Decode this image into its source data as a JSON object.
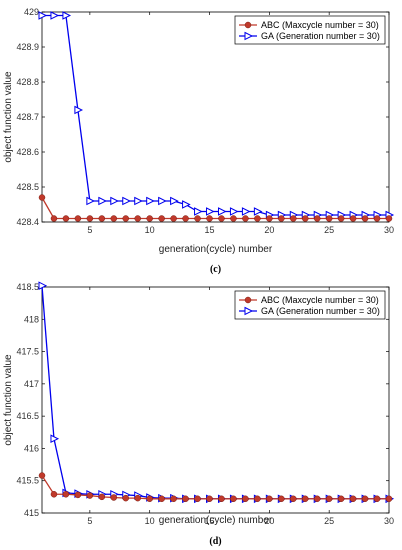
{
  "chart_data": [
    {
      "type": "line",
      "panel_label": "(c)",
      "xlabel": "generation(cycle) number",
      "ylabel": "object function value",
      "xlim": [
        1,
        30
      ],
      "ylim": [
        428.4,
        429
      ],
      "xticks": [
        5,
        10,
        15,
        20,
        25,
        30
      ],
      "yticks": [
        428.4,
        428.5,
        428.6,
        428.7,
        428.8,
        428.9,
        429
      ],
      "ytick_labels": [
        "428.4",
        "428.5",
        "428.6",
        "428.7",
        "428.8",
        "428.9",
        "429"
      ],
      "grid": false,
      "legend_position": "top-right",
      "x": [
        1,
        2,
        3,
        4,
        5,
        6,
        7,
        8,
        9,
        10,
        11,
        12,
        13,
        14,
        15,
        16,
        17,
        18,
        19,
        20,
        21,
        22,
        23,
        24,
        25,
        26,
        27,
        28,
        29,
        30
      ],
      "series": [
        {
          "name": "ABC (Maxcycle number = 30)",
          "color": "#c0392b",
          "marker": "circle",
          "values": [
            428.47,
            428.41,
            428.41,
            428.41,
            428.41,
            428.41,
            428.41,
            428.41,
            428.41,
            428.41,
            428.41,
            428.41,
            428.41,
            428.41,
            428.41,
            428.41,
            428.41,
            428.41,
            428.41,
            428.41,
            428.41,
            428.41,
            428.41,
            428.41,
            428.41,
            428.41,
            428.41,
            428.41,
            428.41,
            428.41
          ]
        },
        {
          "name": "GA  (Generation number = 30)",
          "color": "#0000ee",
          "marker": "triangle-right",
          "values": [
            428.99,
            428.99,
            428.99,
            428.72,
            428.46,
            428.46,
            428.46,
            428.46,
            428.46,
            428.46,
            428.46,
            428.46,
            428.45,
            428.43,
            428.43,
            428.43,
            428.43,
            428.43,
            428.43,
            428.42,
            428.42,
            428.42,
            428.42,
            428.42,
            428.42,
            428.42,
            428.42,
            428.42,
            428.42,
            428.42
          ]
        }
      ]
    },
    {
      "type": "line",
      "panel_label": "(d)",
      "xlabel": "generation(cycle) number",
      "ylabel": "object function value",
      "xlim": [
        1,
        30
      ],
      "ylim": [
        415,
        418.5
      ],
      "xticks": [
        5,
        10,
        15,
        20,
        25,
        30
      ],
      "yticks": [
        415,
        415.5,
        416,
        416.5,
        417,
        417.5,
        418,
        418.5
      ],
      "ytick_labels": [
        "415",
        "415.5",
        "416",
        "416.5",
        "417",
        "417.5",
        "418",
        "418.5"
      ],
      "grid": false,
      "legend_position": "top-right",
      "x": [
        1,
        2,
        3,
        4,
        5,
        6,
        7,
        8,
        9,
        10,
        11,
        12,
        13,
        14,
        15,
        16,
        17,
        18,
        19,
        20,
        21,
        22,
        23,
        24,
        25,
        26,
        27,
        28,
        29,
        30
      ],
      "series": [
        {
          "name": "ABC (Maxcycle number = 30)",
          "color": "#c0392b",
          "marker": "circle",
          "values": [
            415.58,
            415.29,
            415.29,
            415.28,
            415.27,
            415.25,
            415.24,
            415.23,
            415.23,
            415.22,
            415.22,
            415.22,
            415.22,
            415.22,
            415.22,
            415.22,
            415.22,
            415.22,
            415.22,
            415.22,
            415.22,
            415.22,
            415.22,
            415.22,
            415.22,
            415.22,
            415.22,
            415.22,
            415.22,
            415.22
          ]
        },
        {
          "name": "GA  (Generation number = 30)",
          "color": "#0000ee",
          "marker": "triangle-right",
          "values": [
            418.52,
            416.15,
            415.31,
            415.3,
            415.29,
            415.29,
            415.29,
            415.28,
            415.27,
            415.24,
            415.23,
            415.23,
            415.22,
            415.22,
            415.22,
            415.22,
            415.22,
            415.22,
            415.22,
            415.22,
            415.22,
            415.22,
            415.22,
            415.22,
            415.22,
            415.22,
            415.22,
            415.22,
            415.22,
            415.22
          ]
        }
      ]
    }
  ]
}
